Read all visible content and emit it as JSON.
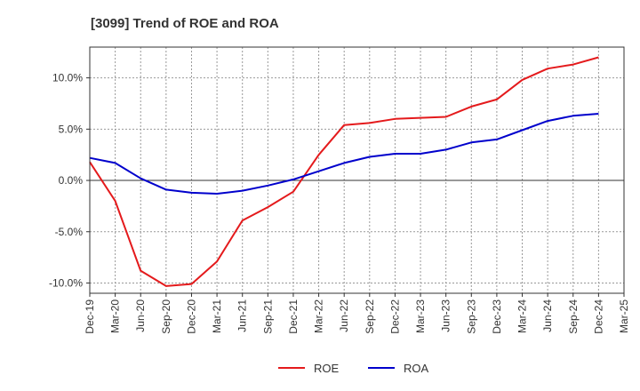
{
  "chart_data": {
    "type": "line",
    "title": "[3099]  Trend of ROE and ROA",
    "xlabel": "",
    "ylabel": "",
    "categories": [
      "Dec-19",
      "Mar-20",
      "Jun-20",
      "Sep-20",
      "Dec-20",
      "Mar-21",
      "Jun-21",
      "Sep-21",
      "Dec-21",
      "Mar-22",
      "Jun-22",
      "Sep-22",
      "Dec-22",
      "Mar-23",
      "Jun-23",
      "Sep-23",
      "Dec-23",
      "Mar-24",
      "Jun-24",
      "Sep-24",
      "Dec-24",
      "Mar-25"
    ],
    "ylim": [
      -11,
      13
    ],
    "yticks": [
      -10,
      -5,
      0,
      5,
      10
    ],
    "ytick_labels": [
      "-10.0%",
      "-5.0%",
      "0.0%",
      "5.0%",
      "10.0%"
    ],
    "grid": true,
    "legend_position": "bottom",
    "series": [
      {
        "name": "ROE",
        "color": "#e41a1c",
        "values": [
          1.8,
          -2.0,
          -8.8,
          -10.3,
          -10.1,
          -7.9,
          -3.9,
          -2.6,
          -1.1,
          2.5,
          5.4,
          5.6,
          6.0,
          6.1,
          6.2,
          7.2,
          7.9,
          9.8,
          10.9,
          11.3,
          12.0,
          null
        ]
      },
      {
        "name": "ROA",
        "color": "#0000cc",
        "values": [
          2.2,
          1.7,
          0.2,
          -0.9,
          -1.2,
          -1.3,
          -1.0,
          -0.5,
          0.1,
          0.9,
          1.7,
          2.3,
          2.6,
          2.6,
          3.0,
          3.7,
          4.0,
          4.9,
          5.8,
          6.3,
          6.5,
          null
        ]
      }
    ]
  }
}
